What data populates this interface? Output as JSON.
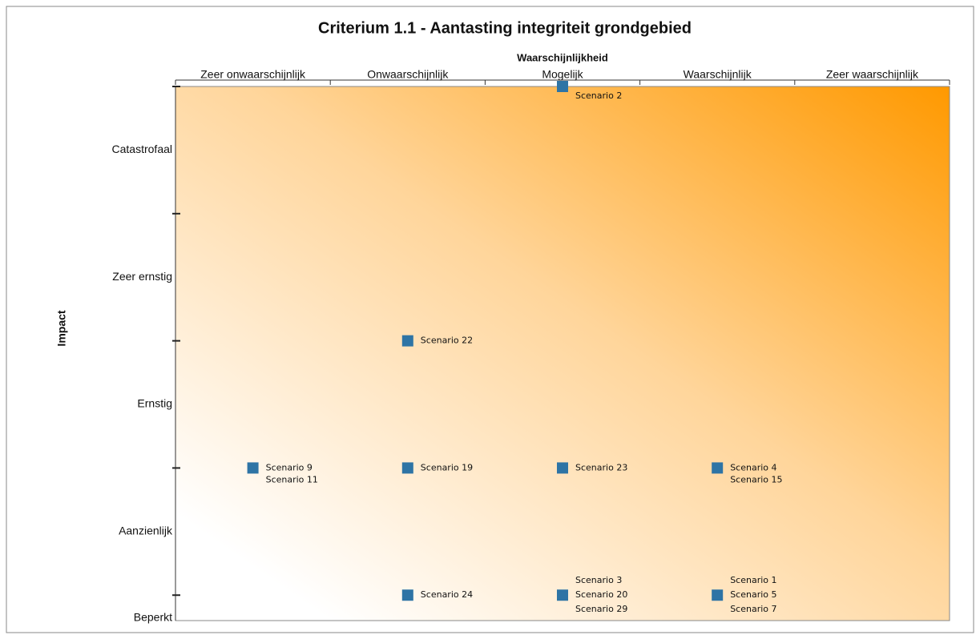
{
  "chart_data": {
    "type": "scatter",
    "title": "Criterium 1.1 - Aantasting integriteit grondgebied",
    "x_label": "Waarschijnlijkheid",
    "y_label": "Impact",
    "categories": [
      "Zeer onwaarschijnlijk",
      "Onwaarschijnlijk",
      "Mogelijk",
      "Waarschijnlijk",
      "Zeer waarschijnlijk"
    ],
    "y_categories": [
      "Catastrofaal",
      "Zeer ernstig",
      "Ernstig",
      "Aanzienlijk",
      "Beperkt"
    ],
    "ylim": [
      0.8,
      5
    ],
    "yticks": [
      1,
      2,
      3,
      4,
      5
    ],
    "color": "#2e74a5",
    "points": [
      {
        "x": "Mogelijk",
        "y": 5,
        "labels": [
          "Scenario 2"
        ]
      },
      {
        "x": "Onwaarschijnlijk",
        "y": 3,
        "labels": [
          "Scenario 22"
        ]
      },
      {
        "x": "Zeer onwaarschijnlijk",
        "y": 2,
        "labels": [
          "Scenario 9",
          "Scenario 11"
        ]
      },
      {
        "x": "Onwaarschijnlijk",
        "y": 2,
        "labels": [
          "Scenario 19"
        ]
      },
      {
        "x": "Mogelijk",
        "y": 2,
        "labels": [
          "Scenario 23"
        ]
      },
      {
        "x": "Waarschijnlijk",
        "y": 2,
        "labels": [
          "Scenario 4",
          "Scenario 15"
        ]
      },
      {
        "x": "Onwaarschijnlijk",
        "y": 1,
        "labels": [
          "Scenario 24"
        ]
      },
      {
        "x": "Mogelijk",
        "y": 1,
        "labels": [
          "Scenario 3",
          "Scenario 20",
          "Scenario 29"
        ]
      },
      {
        "x": "Waarschijnlijk",
        "y": 1,
        "labels": [
          "Scenario 1",
          "Scenario 5",
          "Scenario 7"
        ]
      }
    ]
  }
}
